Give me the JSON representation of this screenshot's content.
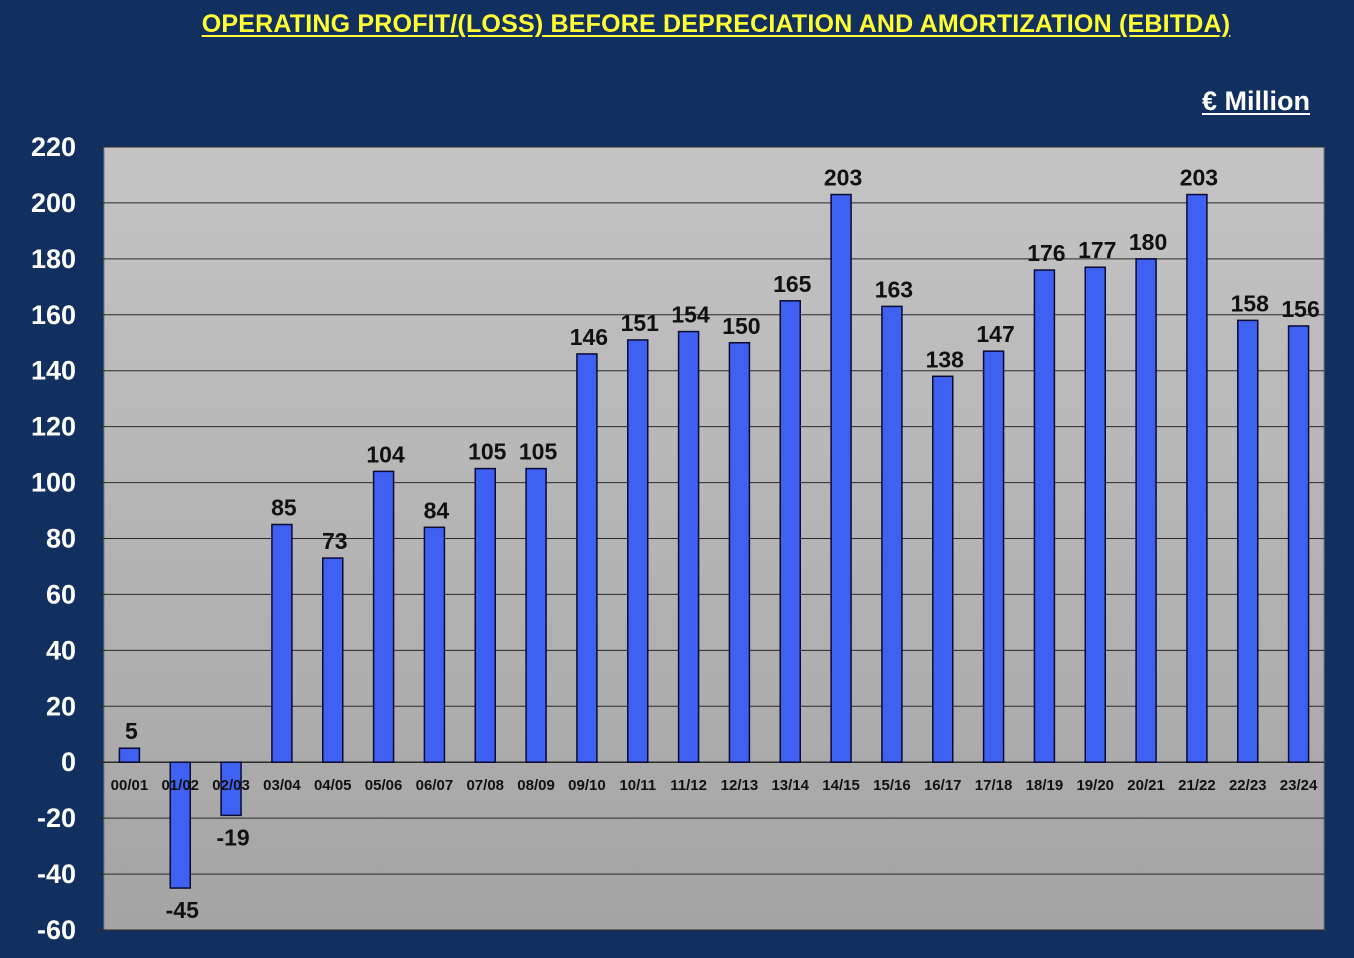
{
  "chart_data": {
    "type": "bar",
    "title": "OPERATING PROFIT/(LOSS) BEFORE DEPRECIATION AND AMORTIZATION (EBITDA)",
    "unit_label": "€ Million",
    "categories": [
      "00/01",
      "01/02",
      "02/03",
      "03/04",
      "04/05",
      "05/06",
      "06/07",
      "07/08",
      "08/09",
      "09/10",
      "10/11",
      "11/12",
      "12/13",
      "13/14",
      "14/15",
      "15/16",
      "16/17",
      "17/18",
      "18/19",
      "19/20",
      "20/21",
      "21/22",
      "22/23",
      "23/24"
    ],
    "values": [
      5,
      -45,
      -19,
      85,
      73,
      104,
      84,
      105,
      105,
      146,
      151,
      154,
      150,
      165,
      203,
      163,
      138,
      147,
      176,
      177,
      180,
      203,
      158,
      156
    ],
    "data_labels": [
      "5",
      "-45",
      "-19",
      "85",
      "73",
      "104",
      "84",
      "105",
      "105",
      "146",
      "151",
      "154",
      "150",
      "165",
      "203",
      "163",
      "138",
      "147",
      "176",
      "177",
      "180",
      "203",
      "158",
      "156"
    ],
    "ylim": [
      -60,
      220
    ],
    "yticks": [
      220,
      200,
      180,
      160,
      140,
      120,
      100,
      80,
      60,
      40,
      20,
      0,
      -20,
      -40,
      -60
    ],
    "grid": true,
    "legend": "none",
    "colors": {
      "background": "#12305f",
      "plot_top": "#c4c4c4",
      "plot_bottom": "#a4a4a4",
      "bar": "#3f61f2",
      "title": "#ffff33"
    }
  }
}
